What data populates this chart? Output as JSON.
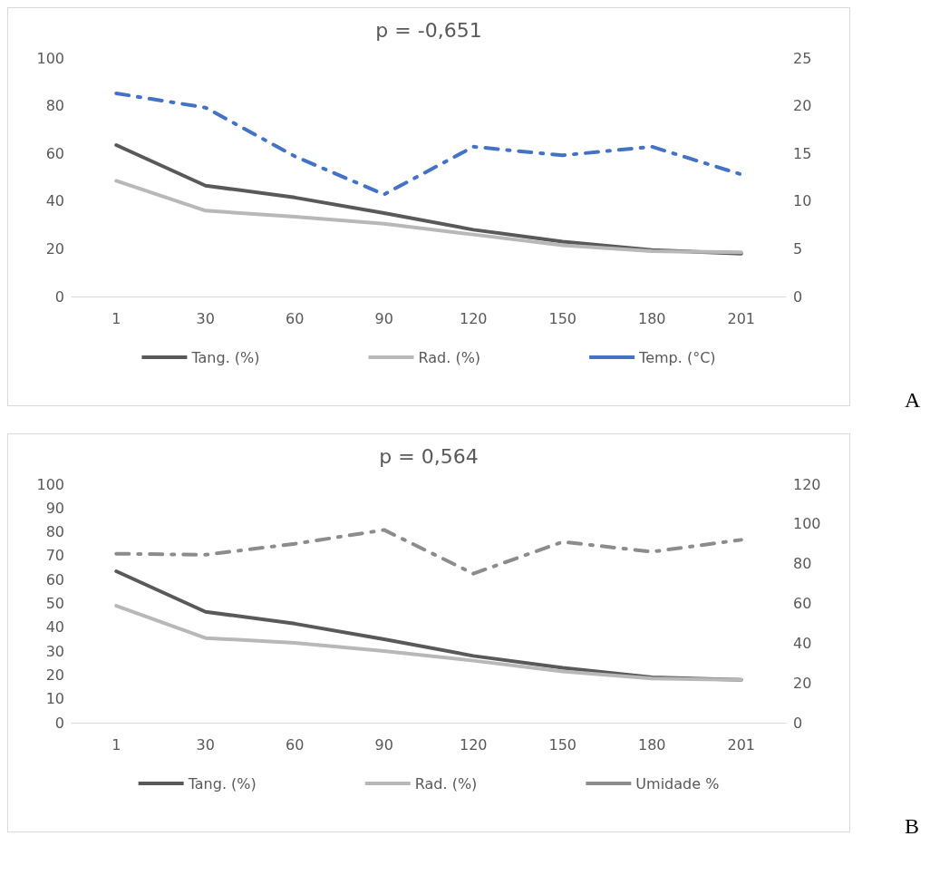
{
  "chart_data": [
    {
      "type": "line",
      "title": "p = -0,651",
      "categories": [
        "1",
        "30",
        "60",
        "90",
        "120",
        "150",
        "180",
        "201"
      ],
      "series": [
        {
          "name": "Tang. (%)",
          "color": "#595959",
          "values": [
            63.5,
            46.5,
            41.5,
            35,
            28,
            23,
            19.5,
            18
          ]
        },
        {
          "name": "Rad. (%)",
          "color": "#b8b8b8",
          "values": [
            48.5,
            36,
            33.5,
            30.5,
            26,
            21.5,
            19,
            18.5
          ]
        },
        {
          "name": "Temp. (°C)",
          "color": "#4472c4",
          "axis": "y2",
          "line_style": "dashed",
          "values": [
            21.3,
            19.8,
            14.7,
            10.7,
            15.7,
            14.8,
            15.7,
            12.8
          ]
        }
      ],
      "ylim": [
        0,
        100
      ],
      "yticks": [
        0,
        20,
        40,
        60,
        80,
        100
      ],
      "y2lim": [
        0,
        25
      ],
      "y2ticks": [
        0,
        5,
        10,
        15,
        20,
        25
      ],
      "grid": false,
      "legend": "bottom",
      "marker": "none",
      "line_style": "solid",
      "annotations": [
        "A"
      ]
    },
    {
      "type": "line",
      "title": "p = 0,564",
      "categories": [
        "1",
        "30",
        "60",
        "90",
        "120",
        "150",
        "180",
        "201"
      ],
      "series": [
        {
          "name": "Tang. (%)",
          "color": "#595959",
          "values": [
            63.5,
            46.5,
            41.5,
            35,
            28,
            23,
            19,
            18
          ]
        },
        {
          "name": "Rad. (%)",
          "color": "#b8b8b8",
          "values": [
            49,
            35.5,
            33.5,
            30,
            26,
            21.5,
            18.5,
            18
          ]
        },
        {
          "name": "Umidade %",
          "color": "#8c8c8c",
          "axis": "y2",
          "line_style": "dashed",
          "values": [
            85,
            84.5,
            90,
            97,
            75,
            91,
            86,
            92
          ]
        }
      ],
      "ylim": [
        0,
        100
      ],
      "yticks": [
        0,
        10,
        20,
        30,
        40,
        50,
        60,
        70,
        80,
        90,
        100
      ],
      "y2lim": [
        0,
        120
      ],
      "y2ticks": [
        0,
        20,
        40,
        60,
        80,
        100,
        120
      ],
      "grid": false,
      "legend": "bottom",
      "marker": "none",
      "line_style": "solid",
      "annotations": [
        "B"
      ]
    }
  ]
}
